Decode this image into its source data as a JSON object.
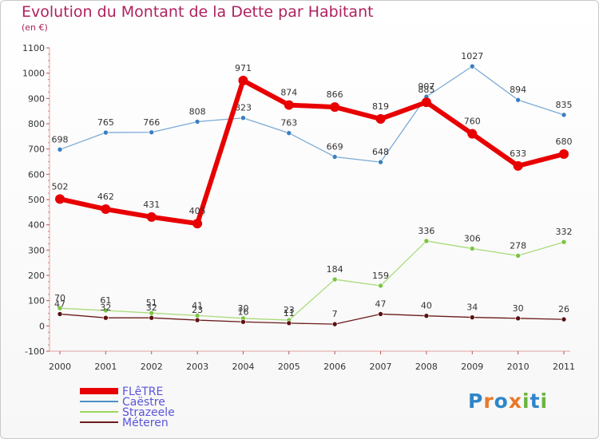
{
  "header": {
    "title": "Evolution du Montant de la Dette par Habitant",
    "subtitle": "(en €)"
  },
  "logo": {
    "text": "Proxiti",
    "colors": [
      "#2f86c9",
      "#e8792b",
      "#2f86c9",
      "#e8792b",
      "#6ab43e",
      "#2f86c9",
      "#6ab43e"
    ]
  },
  "chart_data": {
    "type": "line",
    "title": "Evolution du Montant de la Dette par Habitant",
    "subtitle": "(en €)",
    "x": [
      "2000",
      "2001",
      "2002",
      "2003",
      "2004",
      "2005",
      "2006",
      "2007",
      "2008",
      "2009",
      "2010",
      "2011"
    ],
    "ylim": [
      -100,
      1100
    ],
    "yticks": [
      -100,
      0,
      100,
      200,
      300,
      400,
      500,
      600,
      700,
      800,
      900,
      1000,
      1100
    ],
    "grid": false,
    "legend_position": "bottom-left",
    "series": [
      {
        "name": "FLêTRE",
        "color": "#e80000",
        "values": [
          502,
          462,
          431,
          405,
          971,
          874,
          866,
          819,
          885,
          760,
          633,
          680
        ]
      },
      {
        "name": "Caëstre",
        "color": "#4a90c8",
        "values": [
          698,
          765,
          766,
          808,
          823,
          763,
          669,
          648,
          907,
          1027,
          894,
          835
        ]
      },
      {
        "name": "Strazeele",
        "color": "#9ad85c",
        "values": [
          70,
          61,
          51,
          41,
          30,
          23,
          184,
          159,
          336,
          306,
          278,
          332
        ]
      },
      {
        "name": "Méteren",
        "color": "#6b1a1a",
        "values": [
          47,
          32,
          32,
          23,
          16,
          11,
          7,
          47,
          40,
          34,
          30,
          26
        ]
      }
    ]
  }
}
